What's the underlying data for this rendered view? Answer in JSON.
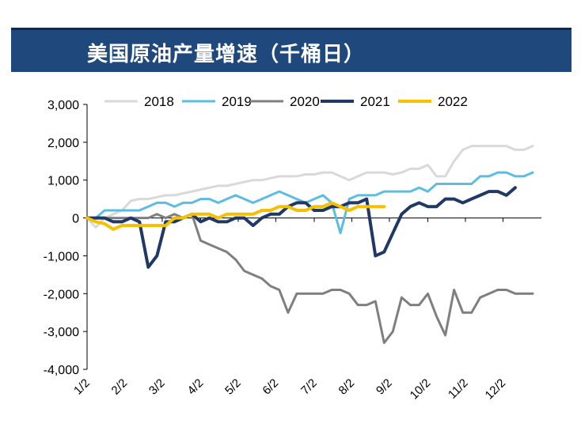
{
  "header": {
    "title": "美国原油产量增速（千桶日）"
  },
  "colors": {
    "title_bg": "#1f497d",
    "axis": "#000000"
  },
  "chart_data": {
    "type": "line",
    "title": "美国原油产量增速（千桶日）",
    "xlabel": "",
    "ylabel": "",
    "ylim": [
      -4000,
      3000
    ],
    "yticks": [
      3000,
      2000,
      1000,
      0,
      -1000,
      -2000,
      -3000,
      -4000
    ],
    "ytick_labels": [
      "3,000",
      "2,000",
      "1,000",
      "0",
      "-1,000",
      "-2,000",
      "-3,000",
      "-4,000"
    ],
    "x_count": 53,
    "xticks": [
      0,
      4.3,
      8.6,
      13,
      17.3,
      21.6,
      26,
      30.3,
      34.6,
      39,
      43.3,
      47.6
    ],
    "xtick_labels": [
      "1/2",
      "2/2",
      "3/2",
      "4/2",
      "5/2",
      "6/2",
      "7/2",
      "8/2",
      "9/2",
      "10/2",
      "11/2",
      "12/2"
    ],
    "legend_position": "top",
    "series": [
      {
        "name": "2018",
        "color": "#d9d9d9",
        "width": 3,
        "values": [
          0,
          -250,
          0,
          100,
          200,
          450,
          500,
          500,
          550,
          600,
          600,
          650,
          700,
          750,
          800,
          850,
          850,
          900,
          950,
          1000,
          1000,
          1050,
          1100,
          1100,
          1100,
          1150,
          1150,
          1200,
          1200,
          1100,
          1000,
          1100,
          1200,
          1200,
          1200,
          1150,
          1200,
          1300,
          1300,
          1400,
          1100,
          1100,
          1500,
          1800,
          1900,
          1900,
          1900,
          1900,
          1900,
          1800,
          1800,
          1900
        ]
      },
      {
        "name": "2019",
        "color": "#5bbce4",
        "width": 3,
        "values": [
          0,
          0,
          200,
          200,
          200,
          200,
          200,
          300,
          400,
          400,
          300,
          400,
          400,
          500,
          500,
          400,
          500,
          600,
          500,
          400,
          500,
          600,
          700,
          600,
          500,
          400,
          500,
          600,
          400,
          -400,
          500,
          600,
          600,
          600,
          700,
          700,
          700,
          700,
          800,
          700,
          900,
          900,
          900,
          900,
          900,
          1100,
          1100,
          1200,
          1200,
          1100,
          1100,
          1200
        ]
      },
      {
        "name": "2020",
        "color": "#7f7f7f",
        "width": 3,
        "values": [
          0,
          0,
          0,
          0,
          0,
          0,
          0,
          0,
          100,
          0,
          100,
          0,
          100,
          -600,
          -700,
          -800,
          -900,
          -1100,
          -1400,
          -1500,
          -1600,
          -1800,
          -1900,
          -2500,
          -2000,
          -2000,
          -2000,
          -2000,
          -1900,
          -1900,
          -2000,
          -2300,
          -2300,
          -2200,
          -3300,
          -3000,
          -2100,
          -2300,
          -2300,
          -2000,
          -2600,
          -3100,
          -1900,
          -2500,
          -2500,
          -2100,
          -2000,
          -1900,
          -1900,
          -2000,
          -2000,
          -2000
        ]
      },
      {
        "name": "2021",
        "color": "#1f3864",
        "width": 4,
        "values": [
          0,
          0,
          0,
          -100,
          -100,
          0,
          -100,
          -1300,
          -1000,
          -100,
          -100,
          0,
          100,
          -100,
          0,
          -100,
          -100,
          0,
          0,
          -200,
          0,
          100,
          100,
          300,
          400,
          400,
          200,
          200,
          300,
          300,
          400,
          400,
          500,
          -1000,
          -900,
          -400,
          100,
          300,
          400,
          300,
          300,
          500,
          500,
          400,
          500,
          600,
          700,
          700,
          600,
          800
        ]
      },
      {
        "name": "2022",
        "color": "#f5c000",
        "width": 4,
        "values": [
          0,
          -100,
          -150,
          -300,
          -200,
          -200,
          -200,
          -200,
          -200,
          -200,
          0,
          0,
          100,
          100,
          100,
          0,
          100,
          100,
          100,
          100,
          200,
          200,
          300,
          300,
          200,
          200,
          300,
          300,
          400,
          300,
          200,
          300,
          300,
          300,
          300
        ]
      }
    ]
  }
}
